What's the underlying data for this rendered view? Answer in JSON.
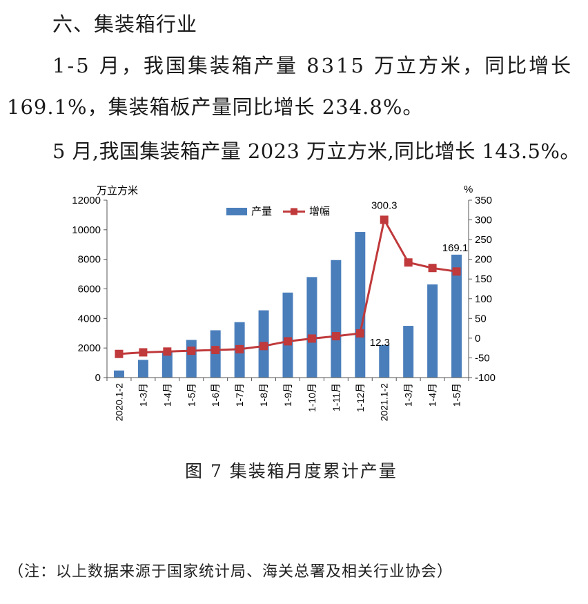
{
  "heading": "六、集装箱行业",
  "paragraphs": [
    "1-5 月，我国集装箱产量 8315 万立方米，同比增长",
    "169.1%，集装箱板产量同比增长 234.8%。",
    "5 月,我国集装箱产量 2023 万立方米,同比增长 143.5%。"
  ],
  "caption": "图 7  集装箱月度累计产量",
  "note": "（注：以上数据来源于国家统计局、海关总署及相关行业协会）",
  "chart_data": {
    "type": "bar",
    "categories": [
      "2020.1-2",
      "1-3月",
      "1-4月",
      "1-5月",
      "1-6月",
      "1-7月",
      "1-8月",
      "1-9月",
      "1-10月",
      "1-11月",
      "1-12月",
      "2021.1-2",
      "1-3月",
      "1-4月",
      "1-5月"
    ],
    "series": [
      {
        "name": "产量",
        "type": "bar",
        "axis": "left",
        "color": "#4a7ebb",
        "values": [
          480,
          1200,
          1800,
          2550,
          3200,
          3750,
          4550,
          5750,
          6800,
          7950,
          9850,
          2200,
          3500,
          6300,
          8315
        ]
      },
      {
        "name": "增幅",
        "type": "line",
        "axis": "right",
        "color": "#c0393b",
        "values": [
          -40,
          -36,
          -34,
          -32,
          -30,
          -28,
          -20,
          -8,
          -1,
          5,
          12.3,
          300.3,
          192,
          178,
          169.1
        ]
      }
    ],
    "y_left": {
      "unit": "万立方米",
      "min": 0,
      "max": 12000,
      "ticks": [
        "0",
        "2000",
        "4000",
        "6000",
        "8000",
        "10000",
        "12000"
      ]
    },
    "y_right": {
      "unit": "%",
      "min": -100,
      "max": 350,
      "ticks": [
        "-100",
        "-50",
        "0",
        "50",
        "100",
        "150",
        "200",
        "250",
        "300",
        "350"
      ]
    },
    "data_labels": [
      {
        "index": 10,
        "text": "12.3"
      },
      {
        "index": 11,
        "text": "300.3"
      },
      {
        "index": 14,
        "text": "169.1"
      }
    ],
    "legend_position": "top"
  }
}
